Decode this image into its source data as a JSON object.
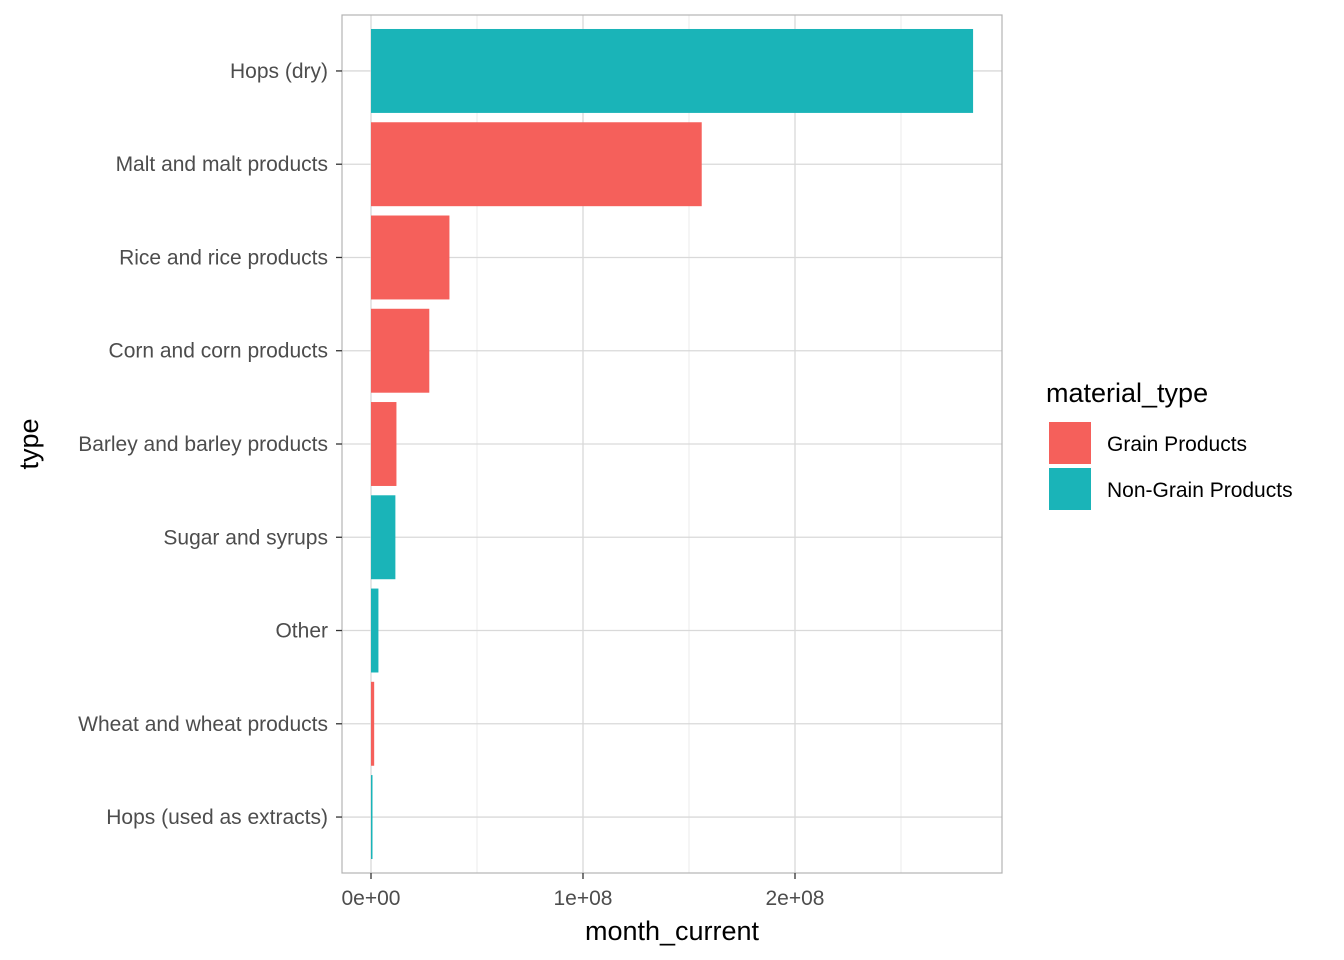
{
  "chart_data": {
    "type": "bar",
    "orientation": "horizontal",
    "xlabel": "month_current",
    "ylabel": "type",
    "xlim": [
      -14000000,
      296000000
    ],
    "x_ticks": [
      {
        "value": 0,
        "label": "0e+00"
      },
      {
        "value": 100000000,
        "label": "1e+08"
      },
      {
        "value": 200000000,
        "label": "2e+08"
      }
    ],
    "x_minor_ticks": [
      50000000,
      150000000,
      250000000
    ],
    "grid": true,
    "categories": [
      "Hops (dry)",
      "Malt and malt products",
      "Rice and rice products",
      "Corn and corn products",
      "Barley and barley products",
      "Sugar and syrups",
      "Other",
      "Wheat and wheat products",
      "Hops (used as extracts)"
    ],
    "values": [
      284000000,
      156000000,
      37000000,
      27500000,
      12000000,
      11500000,
      3500000,
      1500000,
      500000
    ],
    "groups": [
      "Non-Grain Products",
      "Grain Products",
      "Grain Products",
      "Grain Products",
      "Grain Products",
      "Non-Grain Products",
      "Non-Grain Products",
      "Grain Products",
      "Non-Grain Products"
    ],
    "legend": {
      "title": "material_type",
      "placement": "right",
      "entries": [
        {
          "name": "Grain Products",
          "color": "#F8766D"
        },
        {
          "name": "Non-Grain Products",
          "color": "#00BFC4"
        }
      ]
    }
  },
  "colors": {
    "grain": "#F5605B",
    "non_grain": "#1AB4B8",
    "grid_major": "#d9d9d9",
    "grid_minor": "#ebebeb",
    "panel_border": "#b3b3b3",
    "tick_text": "#4d4d4d"
  }
}
